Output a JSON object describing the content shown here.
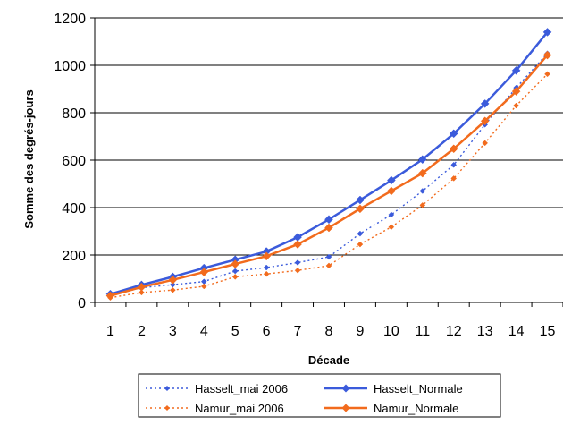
{
  "chart_data": {
    "type": "line",
    "title": "",
    "xlabel": "Décade",
    "ylabel": "Somme des degrés-jours",
    "categories": [
      "1",
      "2",
      "3",
      "4",
      "5",
      "6",
      "7",
      "8",
      "9",
      "10",
      "11",
      "12",
      "13",
      "14",
      "15"
    ],
    "ylim": [
      0,
      1200
    ],
    "yticks": [
      "0",
      "200",
      "400",
      "600",
      "800",
      "1000",
      "1200"
    ],
    "grid": true,
    "legend": "bottom",
    "series": [
      {
        "name": "Hasselt_mai 2006",
        "color": "#3b5bdb",
        "style": "dotted",
        "marker": "diamond",
        "values": [
          30,
          62,
          75,
          88,
          132,
          147,
          168,
          192,
          290,
          370,
          470,
          580,
          750,
          905,
          1050
        ]
      },
      {
        "name": "Hasselt_Normale",
        "color": "#3b5bdb",
        "style": "solid",
        "marker": "diamond",
        "values": [
          35,
          74,
          108,
          145,
          180,
          215,
          275,
          350,
          432,
          515,
          603,
          712,
          838,
          978,
          1140
        ]
      },
      {
        "name": "Namur_mai 2006",
        "color": "#f26b1d",
        "style": "dotted",
        "marker": "diamond",
        "values": [
          20,
          42,
          52,
          68,
          108,
          120,
          135,
          155,
          245,
          318,
          410,
          523,
          672,
          830,
          963
        ]
      },
      {
        "name": "Namur_Normale",
        "color": "#f26b1d",
        "style": "solid",
        "marker": "diamond",
        "values": [
          28,
          65,
          95,
          128,
          162,
          195,
          245,
          315,
          395,
          470,
          545,
          648,
          765,
          890,
          1043
        ]
      }
    ]
  }
}
